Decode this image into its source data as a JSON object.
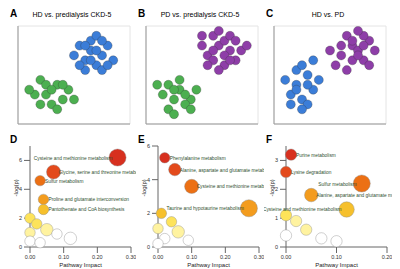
{
  "chart_data": [
    {
      "type": "scatter",
      "panel": "A",
      "title": "HD vs. predialysis CKD-5",
      "tick_labels": false,
      "grid": true,
      "xlim": [
        -10,
        10
      ],
      "ylim": [
        -10,
        10
      ],
      "series": [
        {
          "color": "#3b7dd8",
          "x": [
            2,
            3,
            4,
            5,
            1,
            3,
            6,
            2,
            4,
            5,
            7,
            0,
            3,
            6,
            1,
            4,
            2,
            5
          ],
          "y": [
            3,
            5,
            2,
            4,
            6,
            7,
            6,
            1,
            8,
            1,
            3,
            4,
            3,
            2,
            2,
            5,
            6,
            7
          ]
        },
        {
          "color": "#4caf50",
          "x": [
            -3,
            -5,
            -2,
            -6,
            -4,
            -1,
            -7,
            -3,
            -5,
            -2,
            -6,
            -4,
            0,
            -8
          ],
          "y": [
            -2,
            -4,
            -5,
            -1,
            -6,
            -3,
            -4,
            -7,
            -2,
            -2,
            -6,
            -3,
            -5,
            -3
          ]
        }
      ]
    },
    {
      "type": "scatter",
      "panel": "B",
      "title": "PD vs. predialysis CKD-5",
      "tick_labels": false,
      "grid": true,
      "xlim": [
        -10,
        10
      ],
      "ylim": [
        -10,
        10
      ],
      "series": [
        {
          "color": "#8e3ea8",
          "x": [
            1,
            3,
            5,
            2,
            4,
            6,
            0,
            2,
            4,
            7,
            3,
            5,
            1,
            6,
            2,
            4,
            8,
            3,
            5,
            0
          ],
          "y": [
            4,
            6,
            5,
            8,
            7,
            3,
            6,
            3,
            2,
            5,
            9,
            8,
            2,
            7,
            5,
            4,
            6,
            1,
            3,
            8
          ]
        },
        {
          "color": "#4caf50",
          "x": [
            -4,
            -6,
            -2,
            -5,
            -3,
            -7,
            -1,
            -4,
            -6,
            -3,
            -8,
            -2,
            -5,
            -5
          ],
          "y": [
            -3,
            -2,
            -5,
            -5,
            -6,
            -4,
            -3,
            -1,
            -7,
            -4,
            -2,
            -7,
            -3,
            -8
          ]
        }
      ]
    },
    {
      "type": "scatter",
      "panel": "C",
      "title": "HD vs. PD",
      "tick_labels": false,
      "grid": true,
      "xlim": [
        -10,
        10
      ],
      "ylim": [
        -10,
        10
      ],
      "series": [
        {
          "color": "#3b7dd8",
          "x": [
            -6,
            -4,
            -7,
            -5,
            -3,
            -8,
            -6,
            -4,
            -5,
            -2,
            -7,
            -3,
            -6,
            -4,
            -5
          ],
          "y": [
            -2,
            0,
            -4,
            -5,
            -3,
            -1,
            1,
            -6,
            2,
            -1,
            -6,
            3,
            -3,
            -2,
            -7
          ]
        },
        {
          "color": "#8e3ea8",
          "x": [
            2,
            4,
            6,
            3,
            5,
            7,
            1,
            4,
            6,
            2,
            5,
            8,
            3,
            6,
            4,
            0,
            7,
            5
          ],
          "y": [
            4,
            6,
            3,
            8,
            5,
            7,
            2,
            3,
            8,
            6,
            9,
            5,
            1,
            6,
            7,
            5,
            2,
            4
          ]
        }
      ]
    },
    {
      "type": "bubble",
      "panel": "D",
      "x_label": "Pathway Impact",
      "y_label": "-log(p)",
      "xlim": [
        0,
        0.3
      ],
      "xticks": [
        {
          "value": 0,
          "label": "0.00"
        },
        {
          "value": 0.1,
          "label": "0.10"
        },
        {
          "value": 0.2,
          "label": "0.20"
        },
        {
          "value": 0.3,
          "label": "0.30"
        }
      ],
      "ylim": [
        0,
        7
      ],
      "yticks": [
        0,
        2,
        4,
        6
      ],
      "x": [
        0.26,
        0.07,
        0.03,
        0.04,
        0.04,
        0,
        0.02,
        0.05,
        0,
        0.08,
        0.12,
        0,
        0.03
      ],
      "y": [
        6.2,
        5.2,
        4.6,
        3.3,
        2.6,
        2.0,
        1.6,
        1.2,
        1.0,
        0.9,
        0.6,
        0.4,
        0.3
      ],
      "sizes": [
        3,
        2,
        1,
        1,
        1,
        1,
        1,
        1.5,
        1,
        1,
        1.5,
        1,
        1
      ],
      "colors": [
        "#d7301f",
        "#e34a1c",
        "#ec7014",
        "#f39c1e",
        "#f6c02c",
        "#fde35a",
        "#fde35a",
        "#fff3a0",
        "#fff3a0",
        "#ffffff",
        "#ffffff",
        "#ffffff",
        "#ffffff"
      ],
      "annotations": [
        {
          "text": "Cysteine and methionine metabolism",
          "x": 0.26,
          "y": 6.2
        },
        {
          "text": "Glycine, serine and threonine metabolism",
          "x": 0.07,
          "y": 5.2
        },
        {
          "text": "Sulfur metabolism",
          "x": 0.03,
          "y": 4.6
        },
        {
          "text": "Proline and glutamate interconversion",
          "x": 0.04,
          "y": 3.3
        },
        {
          "text": "Pantothenate and CoA biosynthesis",
          "x": 0.04,
          "y": 2.6
        }
      ]
    },
    {
      "type": "bubble",
      "panel": "E",
      "x_label": "Pathway Impact",
      "y_label": "-log(p)",
      "xlim": [
        0,
        0.3
      ],
      "xticks": [
        {
          "value": 0,
          "label": "0.00"
        },
        {
          "value": 0.1,
          "label": "0.10"
        },
        {
          "value": 0.2,
          "label": "0.20"
        },
        {
          "value": 0.3,
          "label": "0.30"
        }
      ],
      "ylim": [
        0,
        6
      ],
      "yticks": [
        0,
        2,
        4,
        6
      ],
      "x": [
        0.02,
        0.05,
        0.1,
        0.27,
        0.01,
        0.04,
        0,
        0.06,
        0.02,
        0.09,
        0
      ],
      "y": [
        5.3,
        4.6,
        3.6,
        2.3,
        2.0,
        1.5,
        1.1,
        0.9,
        0.5,
        0.4,
        0.2
      ],
      "sizes": [
        1,
        1.5,
        2,
        3,
        1,
        1,
        1,
        1.5,
        1,
        1,
        1
      ],
      "colors": [
        "#d7301f",
        "#e34a1c",
        "#ec7014",
        "#f39c1e",
        "#f6c02c",
        "#fde35a",
        "#fff3a0",
        "#fff3a0",
        "#ffffff",
        "#ffffff",
        "#ffffff"
      ],
      "annotations": [
        {
          "text": "Phenylalanine metabolism",
          "x": 0.02,
          "y": 5.3
        },
        {
          "text": "Alanine, aspartate and glutamate metabolism",
          "x": 0.05,
          "y": 4.6
        },
        {
          "text": "Cysteine and methionine metabolism",
          "x": 0.1,
          "y": 3.6
        },
        {
          "text": "Taurine and hypotaurine metabolism",
          "x": 0.27,
          "y": 2.3
        }
      ]
    },
    {
      "type": "bubble",
      "panel": "F",
      "x_label": "Pathway Impact",
      "y_label": "-log(p)",
      "xlim": [
        0,
        0.2
      ],
      "xticks": [
        {
          "value": 0,
          "label": "0.00"
        },
        {
          "value": 0.1,
          "label": "0.10"
        },
        {
          "value": 0.2,
          "label": "0.20"
        }
      ],
      "ylim": [
        0,
        3.5
      ],
      "yticks": [
        0,
        1,
        2,
        3
      ],
      "x": [
        0.01,
        0,
        0.15,
        0.05,
        0.12,
        0,
        0.02,
        0.04,
        0,
        0.07,
        0.1
      ],
      "y": [
        3.2,
        2.6,
        2.2,
        1.8,
        1.3,
        1.1,
        0.9,
        0.6,
        0.4,
        0.3,
        0.2
      ],
      "sizes": [
        1,
        1,
        2.5,
        1.5,
        2,
        1,
        1,
        1,
        1,
        1,
        1
      ],
      "colors": [
        "#d7301f",
        "#e34a1c",
        "#ec7014",
        "#f39c1e",
        "#f6c02c",
        "#fde35a",
        "#fff3a0",
        "#fff3a0",
        "#ffffff",
        "#ffffff",
        "#ffffff"
      ],
      "annotations": [
        {
          "text": "Purine metabolism",
          "x": 0.01,
          "y": 3.2
        },
        {
          "text": "Lysine degradation",
          "x": 0,
          "y": 2.6
        },
        {
          "text": "Sulfur metabolism",
          "x": 0.15,
          "y": 2.2
        },
        {
          "text": "Alanine, aspartate and glutamate metabolism",
          "x": 0.05,
          "y": 1.8
        },
        {
          "text": "Cysteine and methionine metabolism",
          "x": 0.12,
          "y": 1.3
        }
      ]
    }
  ]
}
